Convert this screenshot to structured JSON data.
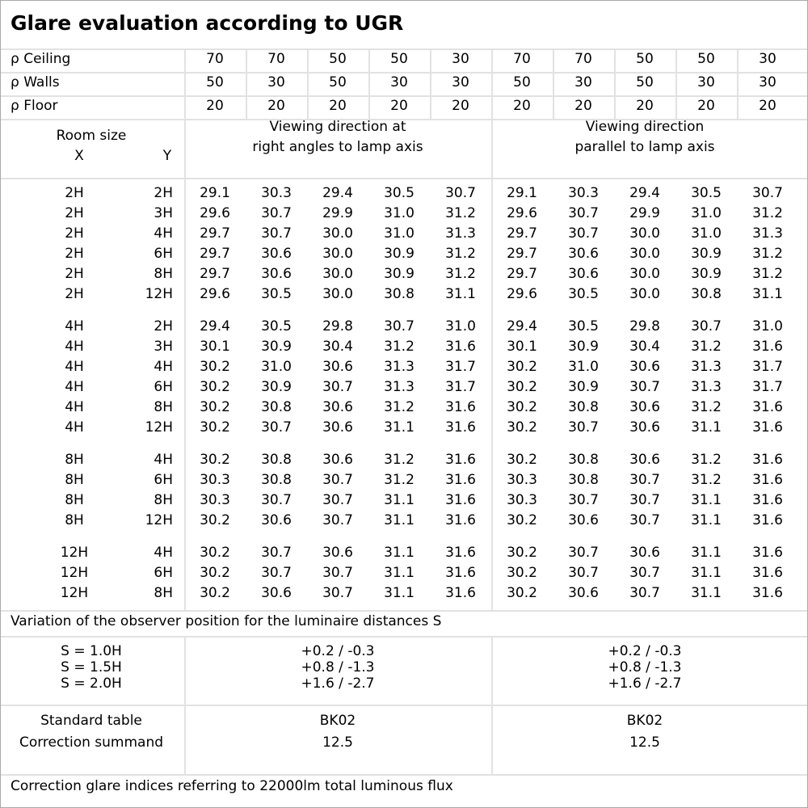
{
  "title": "Glare evaluation according to UGR",
  "reflectances": [
    {
      "label": "ρ Ceiling",
      "values": [
        "70",
        "70",
        "50",
        "50",
        "30",
        "70",
        "70",
        "50",
        "50",
        "30"
      ]
    },
    {
      "label": "ρ Walls",
      "values": [
        "50",
        "30",
        "50",
        "30",
        "30",
        "50",
        "30",
        "50",
        "30",
        "30"
      ]
    },
    {
      "label": "ρ Floor",
      "values": [
        "20",
        "20",
        "20",
        "20",
        "20",
        "20",
        "20",
        "20",
        "20",
        "20"
      ]
    }
  ],
  "header": {
    "room_size": "Room size",
    "x": "X",
    "y": "Y",
    "dir_right_1": "Viewing direction at",
    "dir_right_2": "right angles to lamp axis",
    "dir_parallel_1": "Viewing direction",
    "dir_parallel_2": "parallel to lamp axis"
  },
  "groups": [
    {
      "x": "2H",
      "rows": [
        {
          "y": "2H",
          "values": [
            "29.1",
            "30.3",
            "29.4",
            "30.5",
            "30.7",
            "29.1",
            "30.3",
            "29.4",
            "30.5",
            "30.7"
          ]
        },
        {
          "y": "3H",
          "values": [
            "29.6",
            "30.7",
            "29.9",
            "31.0",
            "31.2",
            "29.6",
            "30.7",
            "29.9",
            "31.0",
            "31.2"
          ]
        },
        {
          "y": "4H",
          "values": [
            "29.7",
            "30.7",
            "30.0",
            "31.0",
            "31.3",
            "29.7",
            "30.7",
            "30.0",
            "31.0",
            "31.3"
          ]
        },
        {
          "y": "6H",
          "values": [
            "29.7",
            "30.6",
            "30.0",
            "30.9",
            "31.2",
            "29.7",
            "30.6",
            "30.0",
            "30.9",
            "31.2"
          ]
        },
        {
          "y": "8H",
          "values": [
            "29.7",
            "30.6",
            "30.0",
            "30.9",
            "31.2",
            "29.7",
            "30.6",
            "30.0",
            "30.9",
            "31.2"
          ]
        },
        {
          "y": "12H",
          "values": [
            "29.6",
            "30.5",
            "30.0",
            "30.8",
            "31.1",
            "29.6",
            "30.5",
            "30.0",
            "30.8",
            "31.1"
          ]
        }
      ]
    },
    {
      "x": "4H",
      "rows": [
        {
          "y": "2H",
          "values": [
            "29.4",
            "30.5",
            "29.8",
            "30.7",
            "31.0",
            "29.4",
            "30.5",
            "29.8",
            "30.7",
            "31.0"
          ]
        },
        {
          "y": "3H",
          "values": [
            "30.1",
            "30.9",
            "30.4",
            "31.2",
            "31.6",
            "30.1",
            "30.9",
            "30.4",
            "31.2",
            "31.6"
          ]
        },
        {
          "y": "4H",
          "values": [
            "30.2",
            "31.0",
            "30.6",
            "31.3",
            "31.7",
            "30.2",
            "31.0",
            "30.6",
            "31.3",
            "31.7"
          ]
        },
        {
          "y": "6H",
          "values": [
            "30.2",
            "30.9",
            "30.7",
            "31.3",
            "31.7",
            "30.2",
            "30.9",
            "30.7",
            "31.3",
            "31.7"
          ]
        },
        {
          "y": "8H",
          "values": [
            "30.2",
            "30.8",
            "30.6",
            "31.2",
            "31.6",
            "30.2",
            "30.8",
            "30.6",
            "31.2",
            "31.6"
          ]
        },
        {
          "y": "12H",
          "values": [
            "30.2",
            "30.7",
            "30.6",
            "31.1",
            "31.6",
            "30.2",
            "30.7",
            "30.6",
            "31.1",
            "31.6"
          ]
        }
      ]
    },
    {
      "x": "8H",
      "rows": [
        {
          "y": "4H",
          "values": [
            "30.2",
            "30.8",
            "30.6",
            "31.2",
            "31.6",
            "30.2",
            "30.8",
            "30.6",
            "31.2",
            "31.6"
          ]
        },
        {
          "y": "6H",
          "values": [
            "30.3",
            "30.8",
            "30.7",
            "31.2",
            "31.6",
            "30.3",
            "30.8",
            "30.7",
            "31.2",
            "31.6"
          ]
        },
        {
          "y": "8H",
          "values": [
            "30.3",
            "30.7",
            "30.7",
            "31.1",
            "31.6",
            "30.3",
            "30.7",
            "30.7",
            "31.1",
            "31.6"
          ]
        },
        {
          "y": "12H",
          "values": [
            "30.2",
            "30.6",
            "30.7",
            "31.1",
            "31.6",
            "30.2",
            "30.6",
            "30.7",
            "31.1",
            "31.6"
          ]
        }
      ]
    },
    {
      "x": "12H",
      "rows": [
        {
          "y": "4H",
          "values": [
            "30.2",
            "30.7",
            "30.6",
            "31.1",
            "31.6",
            "30.2",
            "30.7",
            "30.6",
            "31.1",
            "31.6"
          ]
        },
        {
          "y": "6H",
          "values": [
            "30.2",
            "30.7",
            "30.7",
            "31.1",
            "31.6",
            "30.2",
            "30.7",
            "30.7",
            "31.1",
            "31.6"
          ]
        },
        {
          "y": "8H",
          "values": [
            "30.2",
            "30.6",
            "30.7",
            "31.1",
            "31.6",
            "30.2",
            "30.6",
            "30.7",
            "31.1",
            "31.6"
          ]
        }
      ]
    }
  ],
  "variation": {
    "title": "Variation of the observer position for the luminaire distances S",
    "rows": [
      {
        "s": "S = 1.0H",
        "right": "+0.2 / -0.3",
        "parallel": "+0.2 / -0.3"
      },
      {
        "s": "S = 1.5H",
        "right": "+0.8 / -1.3",
        "parallel": "+0.8 / -1.3"
      },
      {
        "s": "S = 2.0H",
        "right": "+1.6 / -2.7",
        "parallel": "+1.6 / -2.7"
      }
    ]
  },
  "standard": {
    "label1": "Standard table",
    "label2": "Correction summand",
    "right_table": "BK02",
    "right_summand": "12.5",
    "parallel_table": "BK02",
    "parallel_summand": "12.5"
  },
  "footer": "Correction glare indices referring to 22000lm total luminous flux"
}
